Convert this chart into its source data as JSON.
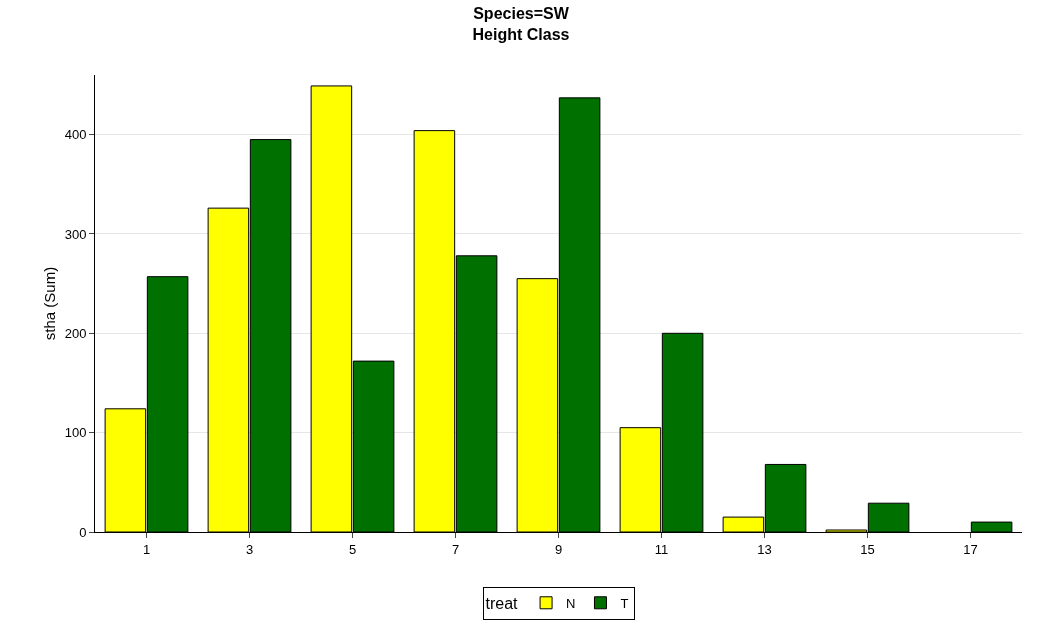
{
  "chart_data": {
    "type": "bar",
    "title": "Species=SW",
    "subtitle": "Height Class",
    "ylabel": "stha (Sum)",
    "legend_title": "treat",
    "categories": [
      "1",
      "3",
      "5",
      "7",
      "9",
      "11",
      "13",
      "15",
      "17"
    ],
    "series": [
      {
        "name": "N",
        "color": "#ffff00",
        "values": [
          124,
          326,
          449,
          404,
          255,
          105,
          15,
          2,
          null
        ]
      },
      {
        "name": "T",
        "color": "#007000",
        "values": [
          257,
          395,
          172,
          278,
          437,
          200,
          68,
          29,
          10
        ]
      }
    ],
    "ylim": [
      0,
      460
    ],
    "yticks": [
      0,
      100,
      200,
      300,
      400
    ],
    "grid": "y",
    "legend": "bottom"
  }
}
